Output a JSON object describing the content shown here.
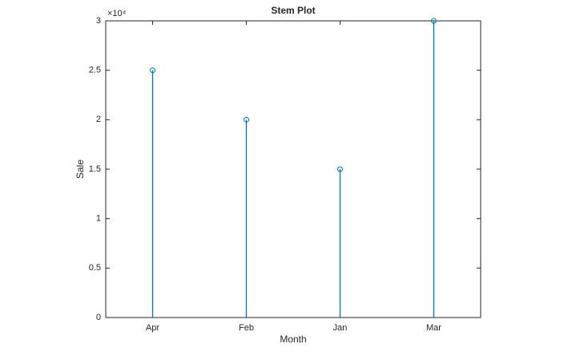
{
  "chart_data": {
    "type": "stem",
    "title": "Stem Plot",
    "x_label": "Month",
    "y_label": "Sale",
    "y_exponent_label": "×10⁴",
    "categories": [
      "Apr",
      "Feb",
      "Jan",
      "Mar"
    ],
    "values": [
      25000,
      20000,
      15000,
      30000
    ],
    "color": "#0072bd",
    "ylim": [
      0,
      30000
    ],
    "yticks": [
      0,
      {
        "value": 5000,
        "label": "0.5"
      },
      {
        "value": 10000,
        "label": "1"
      },
      {
        "value": 15000,
        "label": "1.5"
      },
      {
        "value": 20000,
        "label": "2"
      },
      {
        "value": 25000,
        "label": "2.5"
      },
      {
        "value": 30000,
        "label": "3"
      }
    ],
    "grid": false
  }
}
